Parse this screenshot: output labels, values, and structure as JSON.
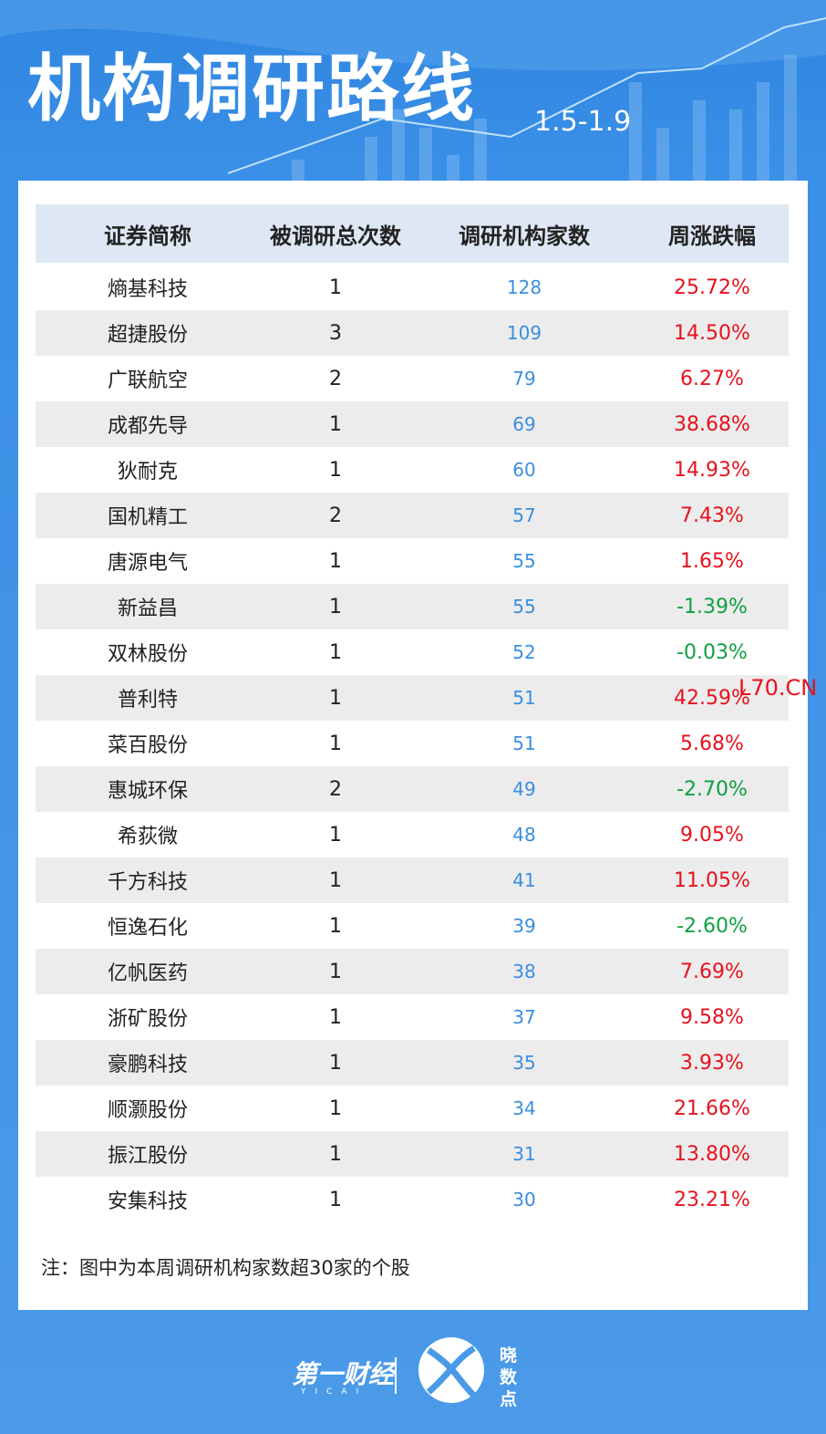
{
  "header": {
    "title": "机构调研路线",
    "date_range": "1.5-1.9"
  },
  "table": {
    "columns": [
      "证券简称",
      "被调研总次数",
      "调研机构家数",
      "周涨跌幅"
    ],
    "rows": [
      [
        "熵基科技",
        "1",
        "128",
        "25.72%"
      ],
      [
        "超捷股份",
        "3",
        "109",
        "14.50%"
      ],
      [
        "广联航空",
        "2",
        "79",
        "6.27%"
      ],
      [
        "成都先导",
        "1",
        "69",
        "38.68%"
      ],
      [
        "狄耐克",
        "1",
        "60",
        "14.93%"
      ],
      [
        "国机精工",
        "2",
        "57",
        "7.43%"
      ],
      [
        "唐源电气",
        "1",
        "55",
        "1.65%"
      ],
      [
        "新益昌",
        "1",
        "55",
        "-1.39%"
      ],
      [
        "双林股份",
        "1",
        "52",
        "-0.03%"
      ],
      [
        "普利特",
        "1",
        "51",
        "42.59%"
      ],
      [
        "菜百股份",
        "1",
        "51",
        "5.68%"
      ],
      [
        "惠城环保",
        "2",
        "49",
        "-2.70%"
      ],
      [
        "希荻微",
        "1",
        "48",
        "9.05%"
      ],
      [
        "千方科技",
        "1",
        "41",
        "11.05%"
      ],
      [
        "恒逸石化",
        "1",
        "39",
        "-2.60%"
      ],
      [
        "亿帆医药",
        "1",
        "38",
        "7.69%"
      ],
      [
        "浙矿股份",
        "1",
        "37",
        "9.58%"
      ],
      [
        "豪鹏科技",
        "1",
        "35",
        "3.93%"
      ],
      [
        "顺灏股份",
        "1",
        "34",
        "21.66%"
      ],
      [
        "振江股份",
        "1",
        "31",
        "13.80%"
      ],
      [
        "安集科技",
        "1",
        "30",
        "23.21%"
      ]
    ]
  },
  "note": "注：图中为本周调研机构家数超30家的个股",
  "watermark": "L70.CN",
  "footer": {
    "brand": "第一财经",
    "brand_sub": "YICAI",
    "product": "晓数点"
  }
}
